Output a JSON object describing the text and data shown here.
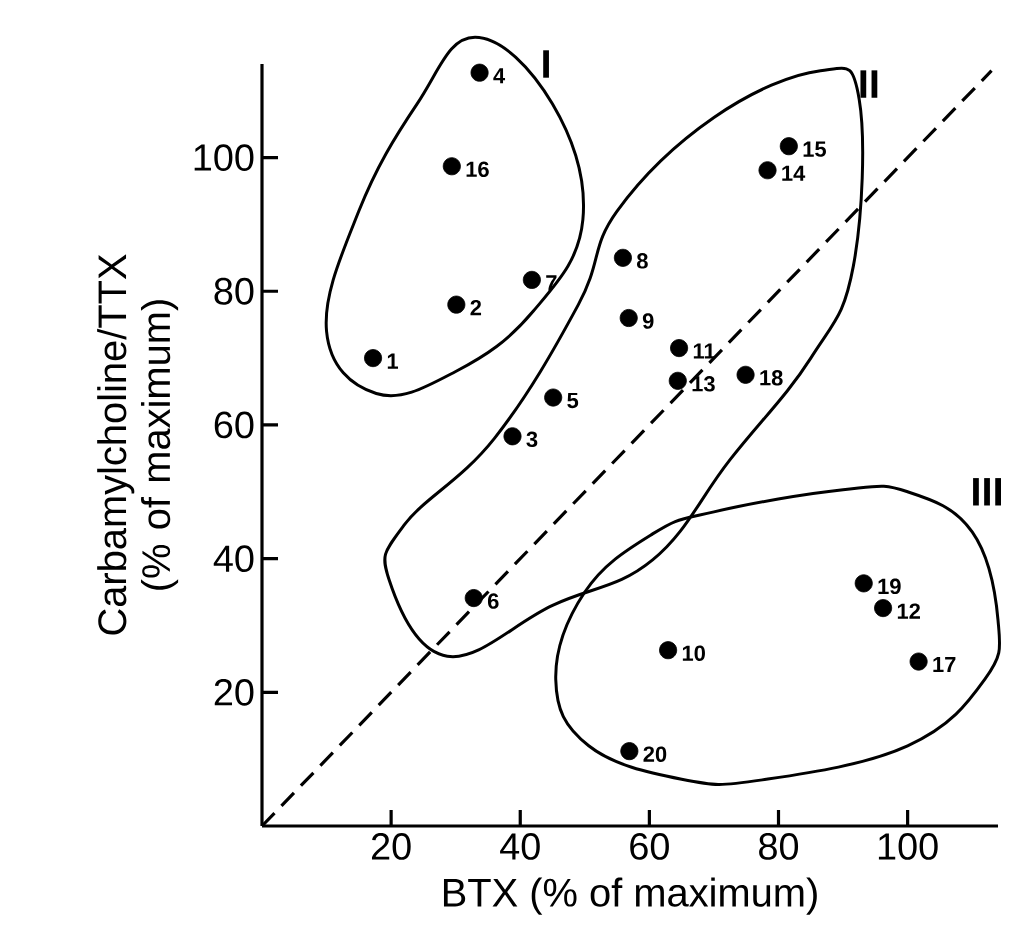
{
  "chart_data": {
    "type": "scatter",
    "xlabel": "BTX (% of maximum)",
    "ylabel": "Carbamylcholine/TTX (% of maximum)",
    "xlim": [
      0,
      114
    ],
    "ylim": [
      0,
      114
    ],
    "xticks": [
      20,
      40,
      60,
      80,
      100
    ],
    "yticks": [
      20,
      40,
      60,
      80,
      100
    ],
    "grid": false,
    "series": [
      {
        "color": "#000000",
        "marker": "circle",
        "x": [
          17.2,
          30.1,
          38.8,
          33.7,
          45.1,
          32.8,
          41.8,
          55.9,
          56.8,
          62.9,
          64.6,
          96.2,
          64.4,
          78.3,
          81.6,
          29.4,
          101.7,
          74.9,
          93.2,
          56.9
        ],
        "values": [
          70,
          78,
          58.3,
          112.7,
          64.1,
          34.1,
          81.7,
          85,
          76,
          26.3,
          71.5,
          32.6,
          66.6,
          98.1,
          101.7,
          98.7,
          24.6,
          67.5,
          36.3,
          11.2
        ]
      },
      {
        "type": "line",
        "color": "#000000",
        "line_style": "dashed",
        "marker": "none",
        "x": [
          0,
          113
        ],
        "values": [
          0,
          113
        ]
      }
    ],
    "annotations": [
      {
        "text": "1",
        "x": 17.2,
        "y": 70
      },
      {
        "text": "2",
        "x": 30.1,
        "y": 78
      },
      {
        "text": "3",
        "x": 38.8,
        "y": 58.3
      },
      {
        "text": "4",
        "x": 33.7,
        "y": 112.7
      },
      {
        "text": "5",
        "x": 45.1,
        "y": 64.1
      },
      {
        "text": "6",
        "x": 32.8,
        "y": 34.1
      },
      {
        "text": "7",
        "x": 41.8,
        "y": 81.7
      },
      {
        "text": "8",
        "x": 55.9,
        "y": 85
      },
      {
        "text": "9",
        "x": 56.8,
        "y": 76
      },
      {
        "text": "10",
        "x": 62.9,
        "y": 26.3
      },
      {
        "text": "11",
        "x": 64.6,
        "y": 71.5
      },
      {
        "text": "12",
        "x": 96.2,
        "y": 32.6
      },
      {
        "text": "13",
        "x": 64.4,
        "y": 66.6
      },
      {
        "text": "14",
        "x": 78.3,
        "y": 98.1
      },
      {
        "text": "15",
        "x": 81.6,
        "y": 101.7
      },
      {
        "text": "16",
        "x": 29.4,
        "y": 98.7
      },
      {
        "text": "17",
        "x": 101.7,
        "y": 24.6
      },
      {
        "text": "18",
        "x": 74.9,
        "y": 67.5
      },
      {
        "text": "19",
        "x": 93.2,
        "y": 36.3
      },
      {
        "text": "20",
        "x": 56.9,
        "y": 11.2
      },
      "I",
      "II",
      "III"
    ]
  }
}
